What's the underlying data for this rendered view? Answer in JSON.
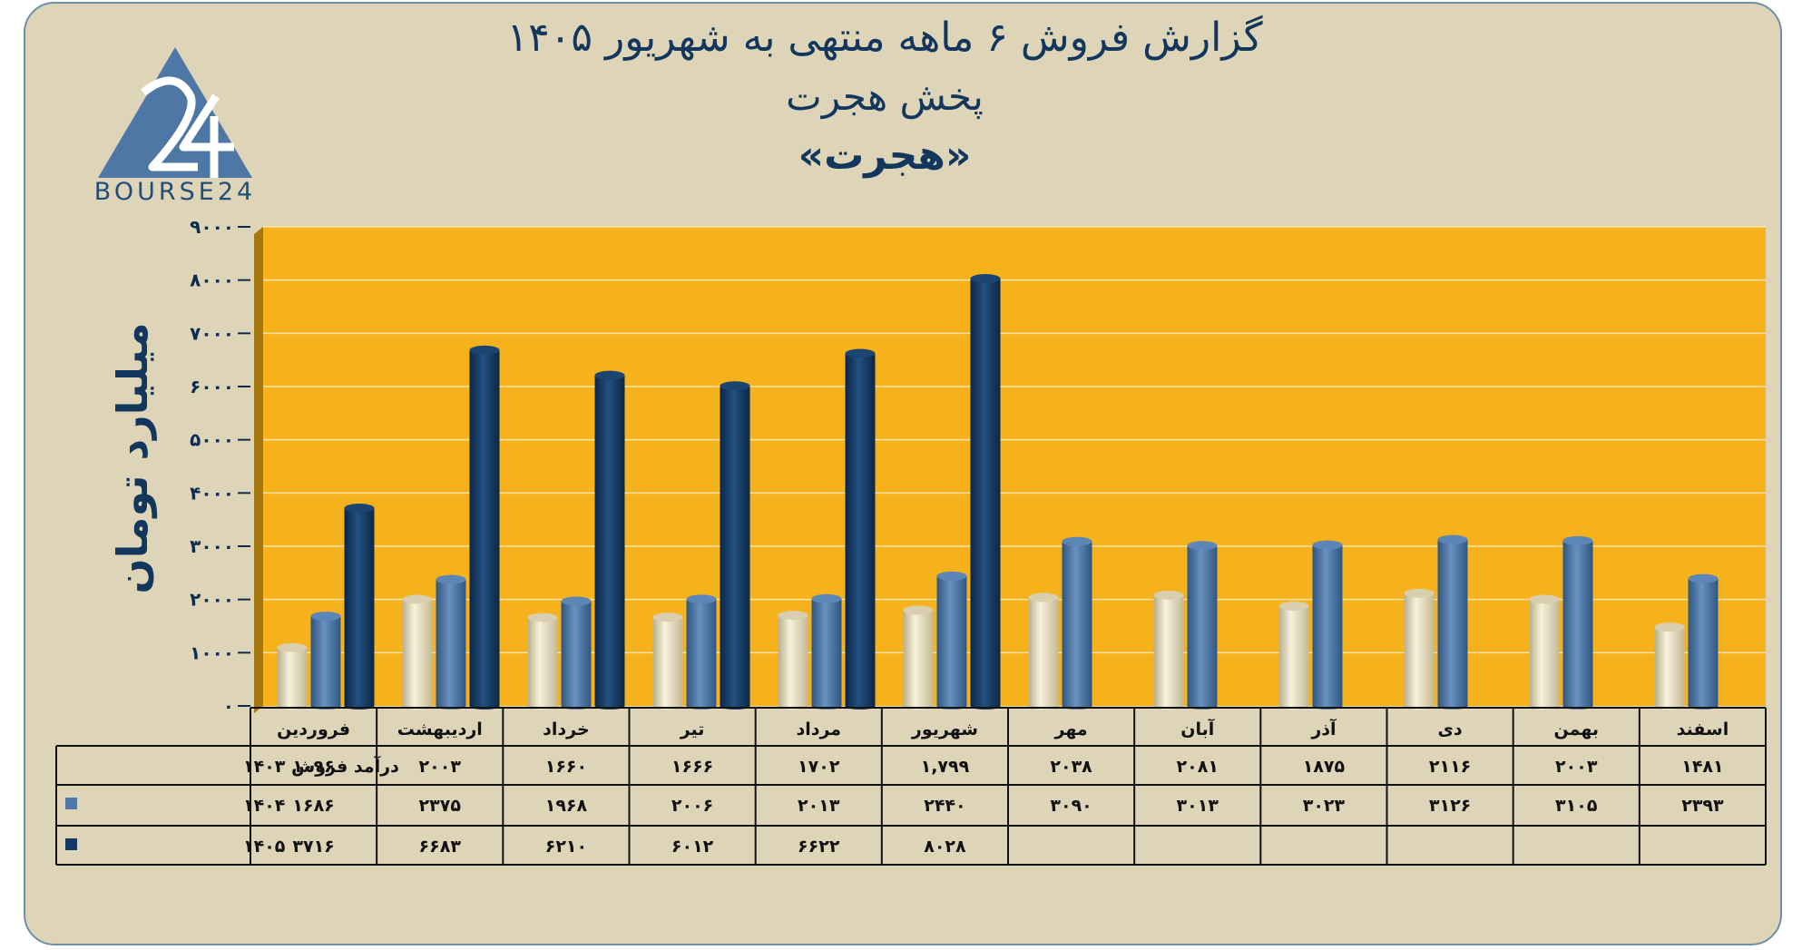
{
  "title": {
    "line1": "گزارش  فروش ۶ ماهه منتهی به شهریور ۱۴۰۵",
    "line2": "پخش هجرت",
    "line3": "«هجرت»"
  },
  "logo": {
    "text": "BOURSE24",
    "icon": "triangle-24-logo"
  },
  "colors": {
    "background": "#ded5b9",
    "plot_area": "#f5b21c",
    "series_1403": "#e9e1c4",
    "series_1404": "#4f77a6",
    "series_1405": "#143a63",
    "text": "#13375c"
  },
  "chart_data": {
    "type": "bar",
    "ylabel": "میلیارد تومان",
    "ylim": [
      0,
      9000
    ],
    "yticks": [
      0,
      1000,
      2000,
      3000,
      4000,
      5000,
      6000,
      7000,
      8000,
      9000
    ],
    "ytick_labels": [
      "۰",
      "۱۰۰۰",
      "۲۰۰۰",
      "۳۰۰۰",
      "۴۰۰۰",
      "۵۰۰۰",
      "۶۰۰۰",
      "۷۰۰۰",
      "۸۰۰۰",
      "۹۰۰۰"
    ],
    "grid": true,
    "categories": [
      "فروردین",
      "اردیبهشت",
      "خرداد",
      "تیر",
      "مرداد",
      "شهریور",
      "مهر",
      "آبان",
      "آذر",
      "دی",
      "بهمن",
      "اسفند"
    ],
    "series": [
      {
        "name": "درآمد فروش ۱۴۰۳",
        "values": [
          1096,
          2003,
          1660,
          1666,
          1702,
          1799,
          2038,
          2081,
          1875,
          2116,
          2003,
          1481
        ],
        "labels": [
          "۱۰۹۶",
          "۲۰۰۳",
          "۱۶۶۰",
          "۱۶۶۶",
          "۱۷۰۲",
          "۱,۷۹۹",
          "۲۰۳۸",
          "۲۰۸۱",
          "۱۸۷۵",
          "۲۱۱۶",
          "۲۰۰۳",
          "۱۴۸۱"
        ]
      },
      {
        "name": "۱۴۰۴",
        "values": [
          1686,
          2375,
          1968,
          2006,
          2013,
          2440,
          3090,
          3013,
          3023,
          3126,
          3105,
          2393
        ],
        "labels": [
          "۱۶۸۶",
          "۲۳۷۵",
          "۱۹۶۸",
          "۲۰۰۶",
          "۲۰۱۳",
          "۲۴۴۰",
          "۳۰۹۰",
          "۳۰۱۳",
          "۳۰۲۳",
          "۳۱۲۶",
          "۳۱۰۵",
          "۲۳۹۳"
        ]
      },
      {
        "name": "۱۴۰۵",
        "values": [
          3716,
          6683,
          6210,
          6012,
          6622,
          8028,
          null,
          null,
          null,
          null,
          null,
          null
        ],
        "labels": [
          "۳۷۱۶",
          "۶۶۸۳",
          "۶۲۱۰",
          "۶۰۱۲",
          "۶۶۲۲",
          "۸۰۲۸",
          "",
          "",
          "",
          "",
          "",
          ""
        ]
      }
    ]
  }
}
